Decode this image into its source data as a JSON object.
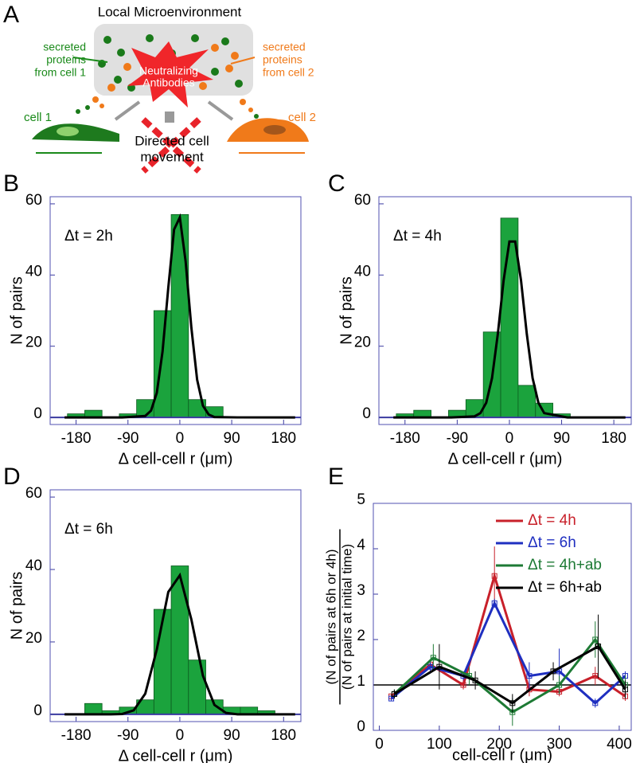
{
  "diagram": {
    "panel": "A",
    "title": "Local Microenvironment",
    "left_label": [
      "secreted",
      "proteins",
      "from cell 1"
    ],
    "right_label": [
      "secreted",
      "proteins",
      "from cell 2"
    ],
    "center_label": [
      "Neutralizing",
      "Antibodies"
    ],
    "cell1": "cell 1",
    "cell2": "cell 2",
    "movement_label": [
      "Directed cell",
      "movement"
    ]
  },
  "chart_data": [
    {
      "type": "histogram",
      "panel": "B",
      "annotation": "Δt = 2h",
      "ylabel": "N of pairs",
      "xlabel": "Δ cell-cell r (μm)",
      "bins": [
        -195,
        -165,
        -135,
        -105,
        -75,
        -45,
        -15,
        15,
        45,
        75,
        105,
        135,
        165,
        195
      ],
      "counts": [
        1,
        2,
        0,
        1,
        5,
        30,
        57,
        5,
        3,
        0,
        0,
        0,
        0
      ],
      "color": "#1ba33d",
      "fit": {
        "x": [
          -200,
          -100,
          -60,
          -50,
          -40,
          -30,
          -20,
          -10,
          0,
          10,
          20,
          30,
          40,
          50,
          60,
          100,
          200
        ],
        "y": [
          0,
          0,
          0.4,
          1.9,
          6.9,
          18.5,
          36.5,
          52.8,
          56.2,
          43.9,
          25.2,
          10.6,
          3.3,
          0.8,
          0.1,
          0,
          0
        ],
        "color": "#000000"
      },
      "xlim": [
        -225,
        210
      ],
      "ylim": [
        -2,
        62
      ],
      "xticks": [
        -180,
        -90,
        0,
        90,
        180
      ],
      "yticks": [
        0,
        20,
        40,
        60
      ]
    },
    {
      "type": "histogram",
      "panel": "C",
      "annotation": "Δt = 4h",
      "ylabel": "N of pairs",
      "xlabel": "Δ cell-cell r (μm)",
      "bins": [
        -195,
        -165,
        -135,
        -105,
        -75,
        -45,
        -15,
        15,
        45,
        75,
        105,
        135,
        165,
        195
      ],
      "counts": [
        1,
        2,
        0,
        2,
        5,
        24,
        56,
        9,
        4,
        1,
        0,
        0,
        0
      ],
      "color": "#1ba33d",
      "fit": {
        "x": [
          -200,
          -100,
          -60,
          -50,
          -40,
          -30,
          -20,
          -10,
          0,
          10,
          20,
          30,
          40,
          50,
          60,
          100,
          200
        ],
        "y": [
          0,
          0,
          0.3,
          1.2,
          4.1,
          11.0,
          23.4,
          38.5,
          49.4,
          49.4,
          38.5,
          23.4,
          11.0,
          4.1,
          1.2,
          0,
          0
        ],
        "color": "#000000"
      },
      "xlim": [
        -225,
        210
      ],
      "ylim": [
        -2,
        62
      ],
      "xticks": [
        -180,
        -90,
        0,
        90,
        180
      ],
      "yticks": [
        0,
        20,
        40,
        60
      ]
    },
    {
      "type": "histogram",
      "panel": "D",
      "annotation": "Δt = 6h",
      "ylabel": "N of pairs",
      "xlabel": "Δ cell-cell r (μm)",
      "bins": [
        -195,
        -165,
        -135,
        -105,
        -75,
        -45,
        -15,
        15,
        45,
        75,
        105,
        135,
        165,
        195
      ],
      "counts": [
        0,
        3,
        1,
        2,
        4,
        29,
        41,
        15,
        4,
        2,
        2,
        1,
        0
      ],
      "color": "#1ba33d",
      "fit": {
        "x": [
          -200,
          -120,
          -100,
          -80,
          -60,
          -40,
          -20,
          0,
          20,
          40,
          60,
          80,
          100,
          120,
          200
        ],
        "y": [
          0,
          0,
          0.1,
          1.1,
          5.7,
          17.9,
          33.8,
          38.4,
          26.2,
          10.7,
          2.6,
          0.4,
          0,
          0,
          0
        ],
        "color": "#000000"
      },
      "xlim": [
        -225,
        210
      ],
      "ylim": [
        -2,
        62
      ],
      "xticks": [
        -180,
        -90,
        0,
        90,
        180
      ],
      "yticks": [
        0,
        20,
        40,
        60
      ]
    },
    {
      "type": "line",
      "panel": "E",
      "ylabel": [
        "(N of pairs at 6h or 4h)",
        "(N of pairs at initial time)"
      ],
      "xlabel": "cell-cell r (μm)",
      "xlim": [
        -10,
        420
      ],
      "ylim": [
        0,
        5
      ],
      "xticks": [
        0,
        100,
        200,
        300,
        400
      ],
      "yticks": [
        0,
        1,
        2,
        3,
        4,
        5
      ],
      "reference_line": 1,
      "legend": "upper right",
      "series": [
        {
          "name": "Δt = 4h",
          "color": "#c8202a",
          "x": [
            20,
            85,
            140,
            192,
            250,
            300,
            360,
            410
          ],
          "values": [
            0.75,
            1.45,
            1.0,
            3.4,
            0.9,
            0.85,
            1.2,
            0.75
          ],
          "errors": [
            0.05,
            0.1,
            0.1,
            0.65,
            0.15,
            0.1,
            0.2,
            0.1
          ]
        },
        {
          "name": "Δt = 6h",
          "color": "#1f2fc0",
          "x": [
            20,
            85,
            140,
            192,
            250,
            300,
            360,
            410
          ],
          "values": [
            0.7,
            1.4,
            1.2,
            2.8,
            1.2,
            1.3,
            0.6,
            1.2
          ],
          "errors": [
            0.05,
            0.15,
            0.1,
            0.1,
            0.3,
            0.5,
            0.1,
            0.1
          ]
        },
        {
          "name": "Δt = 4h+ab",
          "color": "#1d7a34",
          "x": [
            25,
            90,
            150,
            222,
            300,
            360,
            410
          ],
          "values": [
            0.8,
            1.6,
            1.2,
            0.4,
            1.0,
            2.0,
            1.0
          ],
          "errors": [
            0.1,
            0.3,
            0.2,
            0.3,
            0.2,
            0.4,
            0.2
          ]
        },
        {
          "name": "Δt = 6h+ab",
          "color": "#000000",
          "x": [
            25,
            100,
            160,
            222,
            290,
            365,
            410
          ],
          "values": [
            0.8,
            1.4,
            1.1,
            0.6,
            1.3,
            1.85,
            0.9
          ],
          "errors": [
            0.1,
            0.5,
            0.2,
            0.2,
            0.2,
            0.7,
            0.2
          ]
        }
      ]
    }
  ]
}
